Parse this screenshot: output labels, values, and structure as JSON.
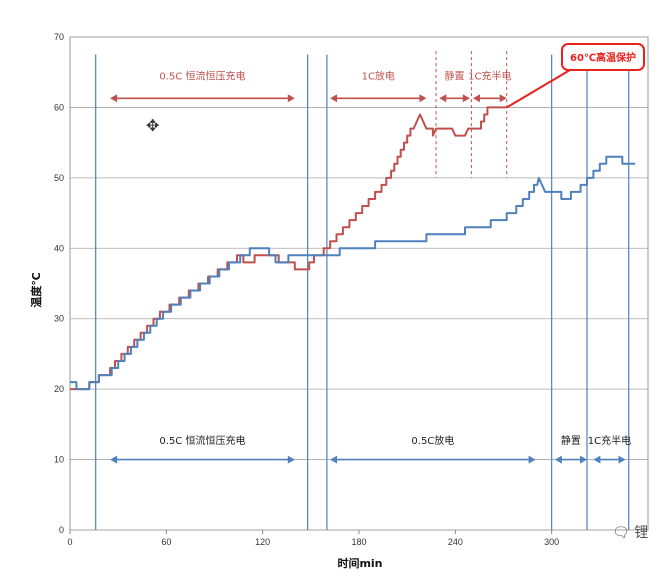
{
  "chart_data": {
    "type": "line",
    "xlabel": "时间min",
    "ylabel": "温度℃",
    "xlim": [
      0,
      360
    ],
    "ylim": [
      0,
      70
    ],
    "xticks": [
      0,
      60,
      120,
      180,
      240,
      300
    ],
    "yticks": [
      0,
      10,
      20,
      30,
      40,
      50,
      60,
      70
    ],
    "grid": "horizontal",
    "colors": {
      "red": "#c0504d",
      "blue": "#4f81bd",
      "callout": "#e8231e"
    },
    "series": [
      {
        "color": "#c0504d",
        "points": [
          [
            0,
            20
          ],
          [
            12,
            20
          ],
          [
            12,
            21
          ],
          [
            18,
            21
          ],
          [
            18,
            22
          ],
          [
            25,
            22
          ],
          [
            25,
            23
          ],
          [
            28,
            23
          ],
          [
            28,
            24
          ],
          [
            32,
            24
          ],
          [
            32,
            25
          ],
          [
            36,
            25
          ],
          [
            36,
            26
          ],
          [
            40,
            26
          ],
          [
            40,
            27
          ],
          [
            44,
            27
          ],
          [
            44,
            28
          ],
          [
            48,
            28
          ],
          [
            48,
            29
          ],
          [
            52,
            29
          ],
          [
            52,
            30
          ],
          [
            56,
            30
          ],
          [
            56,
            31
          ],
          [
            62,
            31
          ],
          [
            62,
            32
          ],
          [
            68,
            32
          ],
          [
            68,
            33
          ],
          [
            74,
            33
          ],
          [
            74,
            34
          ],
          [
            80,
            34
          ],
          [
            80,
            35
          ],
          [
            86,
            35
          ],
          [
            86,
            36
          ],
          [
            92,
            36
          ],
          [
            92,
            37
          ],
          [
            98,
            37
          ],
          [
            98,
            38
          ],
          [
            104,
            38
          ],
          [
            104,
            39
          ],
          [
            108,
            39
          ],
          [
            108,
            38
          ],
          [
            115,
            38
          ],
          [
            115,
            39
          ],
          [
            130,
            39
          ],
          [
            130,
            38
          ],
          [
            137,
            38
          ],
          [
            140,
            38
          ],
          [
            140,
            37
          ],
          [
            149,
            37
          ],
          [
            149,
            38
          ],
          [
            152,
            38
          ],
          [
            152,
            39
          ],
          [
            158,
            39
          ],
          [
            158,
            40
          ],
          [
            162,
            40
          ],
          [
            162,
            41
          ],
          [
            166,
            41
          ],
          [
            166,
            42
          ],
          [
            170,
            42
          ],
          [
            170,
            43
          ],
          [
            174,
            43
          ],
          [
            174,
            44
          ],
          [
            178,
            44
          ],
          [
            178,
            45
          ],
          [
            182,
            45
          ],
          [
            182,
            46
          ],
          [
            186,
            46
          ],
          [
            186,
            47
          ],
          [
            190,
            47
          ],
          [
            190,
            48
          ],
          [
            194,
            48
          ],
          [
            194,
            49
          ],
          [
            197,
            49
          ],
          [
            197,
            50
          ],
          [
            200,
            50
          ],
          [
            200,
            51
          ],
          [
            202,
            51
          ],
          [
            202,
            52
          ],
          [
            204,
            52
          ],
          [
            204,
            53
          ],
          [
            206,
            53
          ],
          [
            206,
            54
          ],
          [
            208,
            54
          ],
          [
            208,
            55
          ],
          [
            210,
            55
          ],
          [
            210,
            56
          ],
          [
            212,
            56
          ],
          [
            212,
            57
          ],
          [
            214,
            57
          ],
          [
            216,
            58
          ],
          [
            218,
            59
          ],
          [
            220,
            58
          ],
          [
            222,
            57
          ],
          [
            226,
            57
          ],
          [
            226,
            56
          ],
          [
            228,
            57
          ],
          [
            238,
            57
          ],
          [
            240,
            56
          ],
          [
            246,
            56
          ],
          [
            248,
            57
          ],
          [
            256,
            57
          ],
          [
            256,
            58
          ],
          [
            258,
            58
          ],
          [
            258,
            59
          ],
          [
            260,
            59
          ],
          [
            260,
            60
          ],
          [
            272,
            60
          ]
        ]
      },
      {
        "color": "#4f81bd",
        "points": [
          [
            0,
            21
          ],
          [
            4,
            21
          ],
          [
            4,
            20
          ],
          [
            12,
            20
          ],
          [
            12,
            21
          ],
          [
            18,
            21
          ],
          [
            18,
            22
          ],
          [
            26,
            22
          ],
          [
            26,
            23
          ],
          [
            30,
            23
          ],
          [
            30,
            24
          ],
          [
            34,
            24
          ],
          [
            34,
            25
          ],
          [
            38,
            25
          ],
          [
            38,
            26
          ],
          [
            42,
            26
          ],
          [
            42,
            27
          ],
          [
            46,
            27
          ],
          [
            46,
            28
          ],
          [
            50,
            28
          ],
          [
            50,
            29
          ],
          [
            54,
            29
          ],
          [
            54,
            30
          ],
          [
            58,
            30
          ],
          [
            58,
            31
          ],
          [
            63,
            31
          ],
          [
            63,
            32
          ],
          [
            69,
            32
          ],
          [
            69,
            33
          ],
          [
            75,
            33
          ],
          [
            75,
            34
          ],
          [
            81,
            34
          ],
          [
            81,
            35
          ],
          [
            87,
            35
          ],
          [
            87,
            36
          ],
          [
            93,
            36
          ],
          [
            93,
            37
          ],
          [
            99,
            37
          ],
          [
            99,
            38
          ],
          [
            106,
            38
          ],
          [
            106,
            39
          ],
          [
            112,
            39
          ],
          [
            112,
            40
          ],
          [
            124,
            40
          ],
          [
            124,
            39
          ],
          [
            128,
            39
          ],
          [
            128,
            38
          ],
          [
            136,
            38
          ],
          [
            136,
            39
          ],
          [
            150,
            39
          ],
          [
            150,
            39
          ],
          [
            168,
            39
          ],
          [
            168,
            40
          ],
          [
            190,
            40
          ],
          [
            190,
            41
          ],
          [
            222,
            41
          ],
          [
            222,
            42
          ],
          [
            246,
            42
          ],
          [
            246,
            43
          ],
          [
            262,
            43
          ],
          [
            262,
            44
          ],
          [
            272,
            44
          ],
          [
            272,
            45
          ],
          [
            278,
            45
          ],
          [
            278,
            46
          ],
          [
            282,
            46
          ],
          [
            282,
            47
          ],
          [
            286,
            47
          ],
          [
            286,
            48
          ],
          [
            289,
            48
          ],
          [
            289,
            49
          ],
          [
            291,
            49
          ],
          [
            292,
            50
          ],
          [
            294,
            49
          ],
          [
            296,
            48
          ],
          [
            300,
            48
          ],
          [
            306,
            48
          ],
          [
            306,
            47
          ],
          [
            312,
            47
          ],
          [
            312,
            48
          ],
          [
            318,
            48
          ],
          [
            318,
            49
          ],
          [
            322,
            49
          ],
          [
            322,
            50
          ],
          [
            326,
            50
          ],
          [
            326,
            51
          ],
          [
            330,
            51
          ],
          [
            330,
            52
          ],
          [
            334,
            52
          ],
          [
            334,
            53
          ],
          [
            344,
            53
          ],
          [
            344,
            52
          ],
          [
            352,
            52
          ]
        ]
      }
    ],
    "phases_top": [
      {
        "label": "0.5C 恒流恒压充电",
        "from": 25,
        "to": 140
      },
      {
        "label": "1C放电",
        "from": 162,
        "to": 222
      },
      {
        "label": "静置",
        "from": 230,
        "to": 249
      },
      {
        "label": "1C充半电",
        "from": 251,
        "to": 272
      }
    ],
    "phases_bottom": [
      {
        "label": "0.5C 恒流恒压充电",
        "from": 25,
        "to": 140
      },
      {
        "label": "0.5C放电",
        "from": 162,
        "to": 290
      },
      {
        "label": "静置",
        "from": 302,
        "to": 322
      },
      {
        "label": "1C充半电",
        "from": 326,
        "to": 346
      }
    ],
    "blue_vlines": [
      16,
      148,
      160,
      300,
      322,
      348
    ],
    "red_dashed_vlines": [
      228,
      250,
      272
    ],
    "callout": {
      "label": "60℃高温保护",
      "x": 272,
      "y": 60
    }
  },
  "cursor_glyph": "✥",
  "watermark_text": "🗨 锂"
}
